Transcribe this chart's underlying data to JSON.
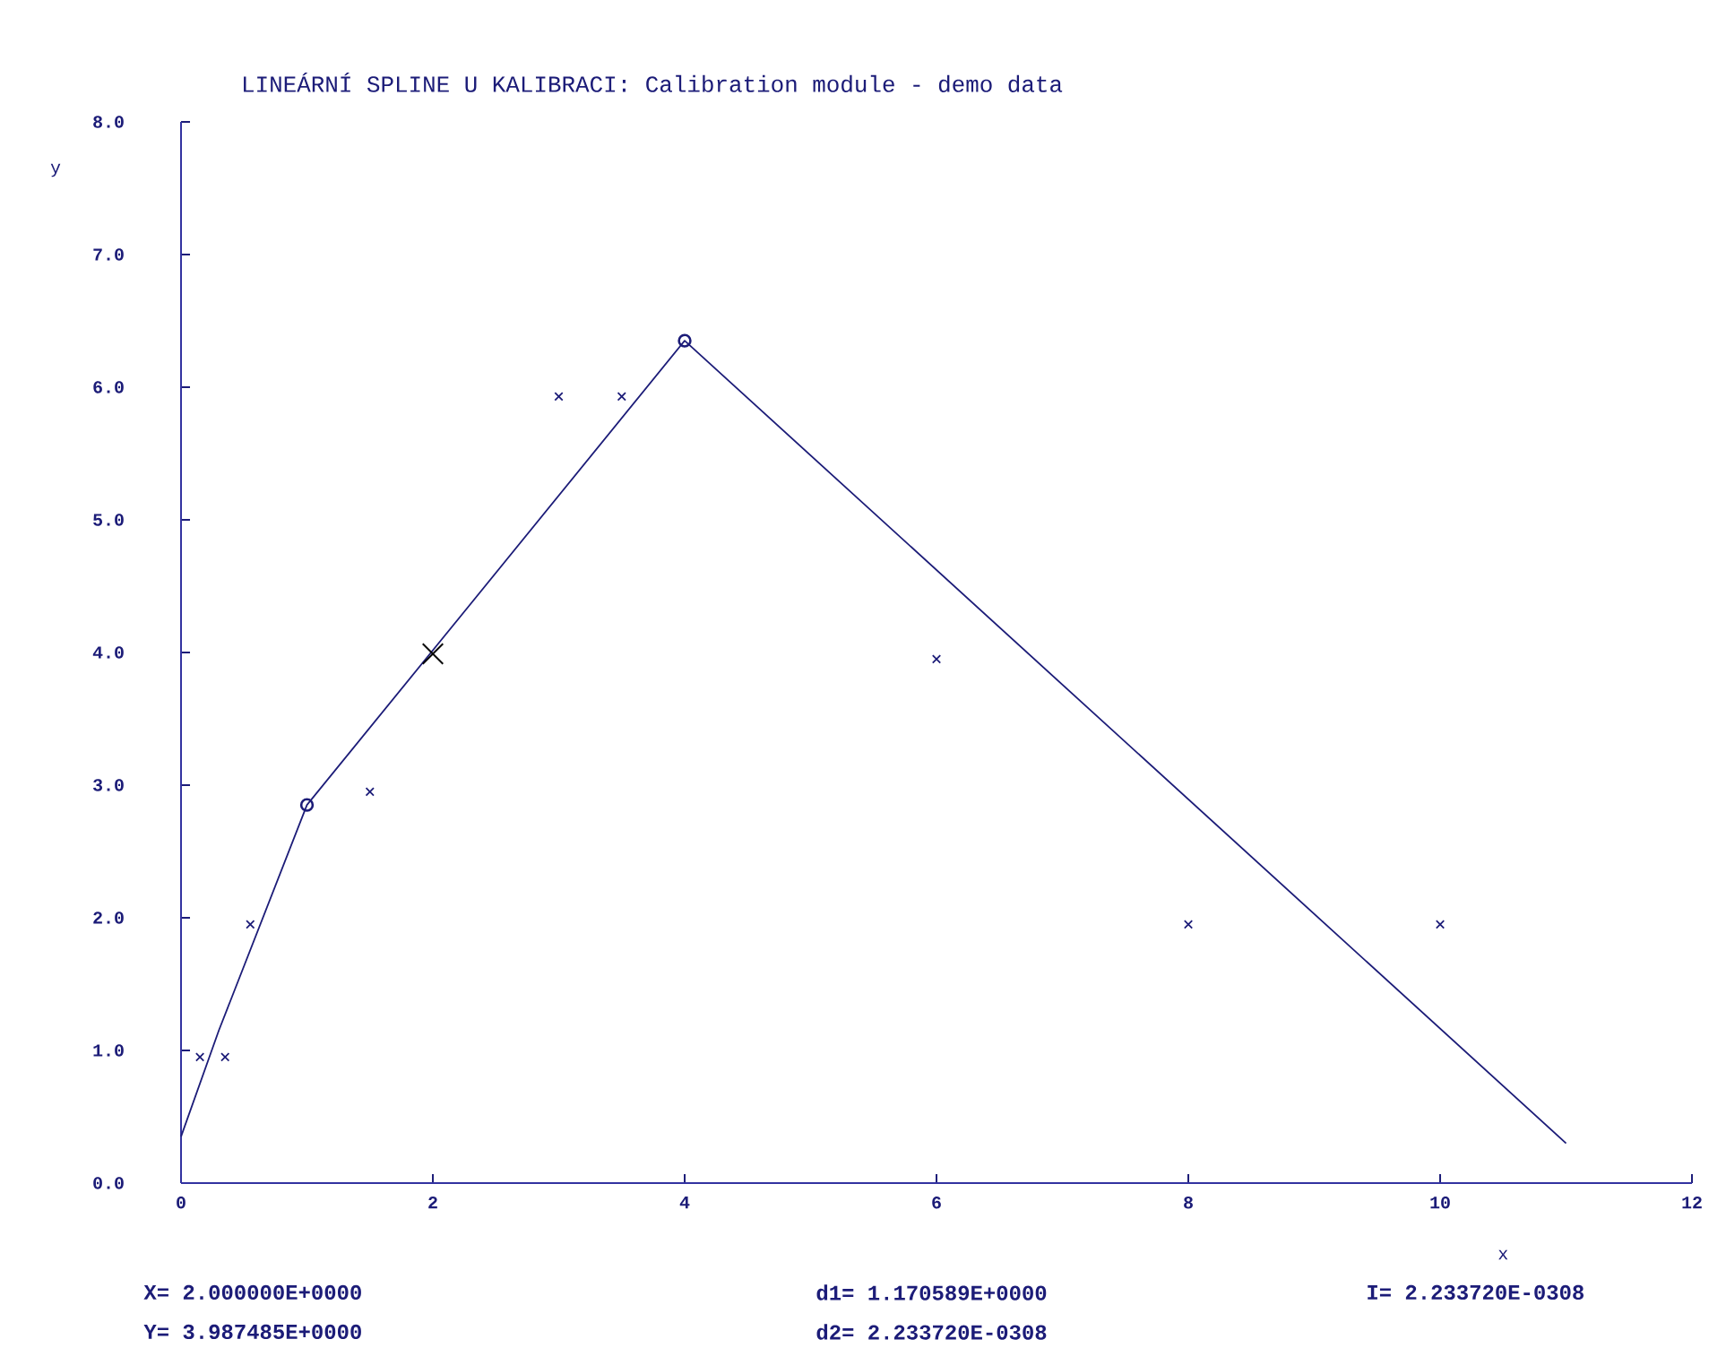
{
  "chart_data": {
    "type": "scatter",
    "title": "LINEÁRNÍ SPLINE U KALIBRACI: Calibration module - demo data",
    "xlabel": "x",
    "ylabel": "y",
    "xlim": [
      0,
      12
    ],
    "xticks": [
      0,
      2,
      4,
      6,
      8,
      10,
      12
    ],
    "ylim": [
      0,
      8
    ],
    "yticks": [
      {
        "value": 0,
        "label": "0.0"
      },
      {
        "value": 1,
        "label": "1.0"
      },
      {
        "value": 2,
        "label": "2.0"
      },
      {
        "value": 3,
        "label": "3.0"
      },
      {
        "value": 4,
        "label": "4.0"
      },
      {
        "value": 5,
        "label": "5.0"
      },
      {
        "value": 6,
        "label": "6.0"
      },
      {
        "value": 7,
        "label": "7.0"
      },
      {
        "value": 8,
        "label": "8.0"
      }
    ],
    "grid": false,
    "series": [
      {
        "type": "line",
        "marker": "none",
        "color": "#1c1c78",
        "x": [
          0,
          0.3,
          1.0,
          4.0,
          11.0
        ],
        "values": [
          0.35,
          1.15,
          2.85,
          6.35,
          0.3
        ]
      },
      {
        "marker": "circle",
        "color": "#1c1c78",
        "x": [
          1.0,
          4.0
        ],
        "values": [
          2.85,
          6.35
        ]
      },
      {
        "marker": "cross",
        "color": "#1c1c78",
        "x": [
          0.15,
          0.35,
          0.55,
          1.5,
          3.0,
          3.5,
          6.0,
          8.0,
          10.0
        ],
        "values": [
          0.95,
          0.95,
          1.95,
          2.95,
          5.93,
          5.93,
          3.95,
          1.95,
          1.95
        ]
      },
      {
        "marker": "cross",
        "color": "#000000",
        "x": [
          2.0
        ],
        "values": [
          3.99
        ]
      }
    ],
    "annotations": [
      "X= 2.000000E+0000",
      "Y= 3.987485E+0000",
      "d1= 1.170589E+0000",
      "d2= 2.233720E-0308",
      "I= 2.233720E-0308"
    ]
  }
}
